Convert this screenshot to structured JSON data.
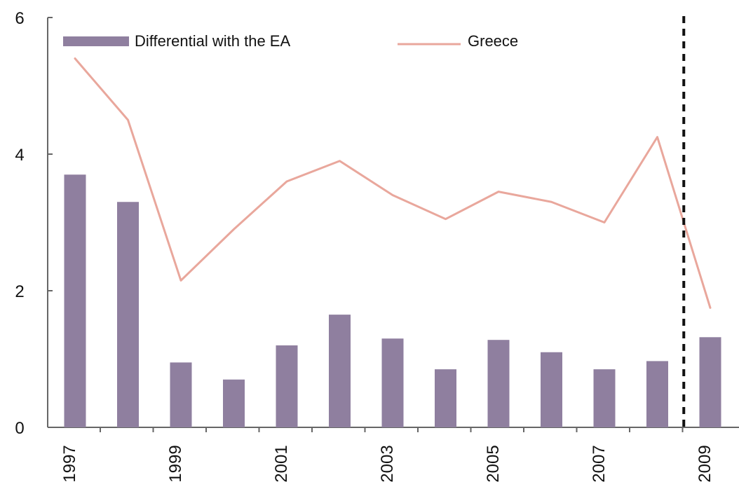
{
  "chart_data": {
    "type": "bar",
    "title": "",
    "xlabel": "",
    "ylabel": "",
    "categories": [
      "1997",
      "1998",
      "1999",
      "2000",
      "2001",
      "2002",
      "2003",
      "2004",
      "2005",
      "2006",
      "2007",
      "2008",
      "2009"
    ],
    "x_tick_labels": [
      "1997",
      "1999",
      "2001",
      "2003",
      "2005",
      "2007",
      "2009"
    ],
    "y_ticks": [
      "0",
      "2",
      "4",
      "6"
    ],
    "ylim": [
      0,
      6
    ],
    "series": [
      {
        "name": "Differential with the EA",
        "type": "bar",
        "color": "#8f7f9f",
        "values": [
          3.7,
          3.3,
          0.95,
          0.7,
          1.2,
          1.65,
          1.3,
          0.85,
          1.28,
          1.1,
          0.85,
          0.97,
          1.32
        ]
      },
      {
        "name": "Greece",
        "type": "line",
        "color": "#e9a79c",
        "values": [
          5.4,
          4.5,
          2.15,
          2.9,
          3.6,
          3.9,
          3.4,
          3.05,
          3.45,
          3.3,
          3.0,
          4.25,
          1.75
        ]
      }
    ],
    "vertical_marker": {
      "style": "dashed",
      "between": [
        "2008",
        "2009"
      ],
      "color": "#111111"
    },
    "legend_position": "top-left",
    "grid": false
  }
}
